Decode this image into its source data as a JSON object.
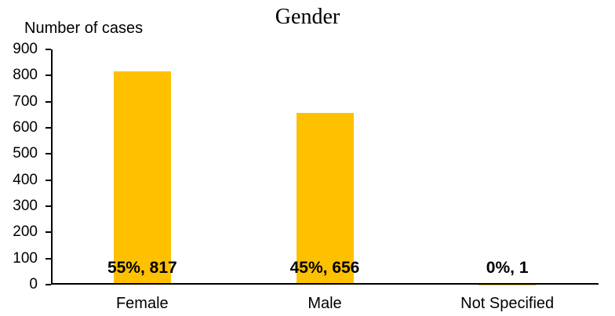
{
  "chart_data": {
    "type": "bar",
    "title": "Gender",
    "ylabel": "Number of cases",
    "categories": [
      "Female",
      "Male",
      "Not Specified"
    ],
    "values": [
      817,
      656,
      1
    ],
    "value_labels": [
      "55%, 817",
      "45%, 656",
      "0%, 1"
    ],
    "ylim": [
      0,
      900
    ],
    "ytick_step": 100,
    "yticks": [
      0,
      100,
      200,
      300,
      400,
      500,
      600,
      700,
      800,
      900
    ],
    "bar_color": "#FFC000",
    "axis_color": "#000000",
    "text_color": "#000000",
    "grid": false,
    "legend": "none"
  }
}
